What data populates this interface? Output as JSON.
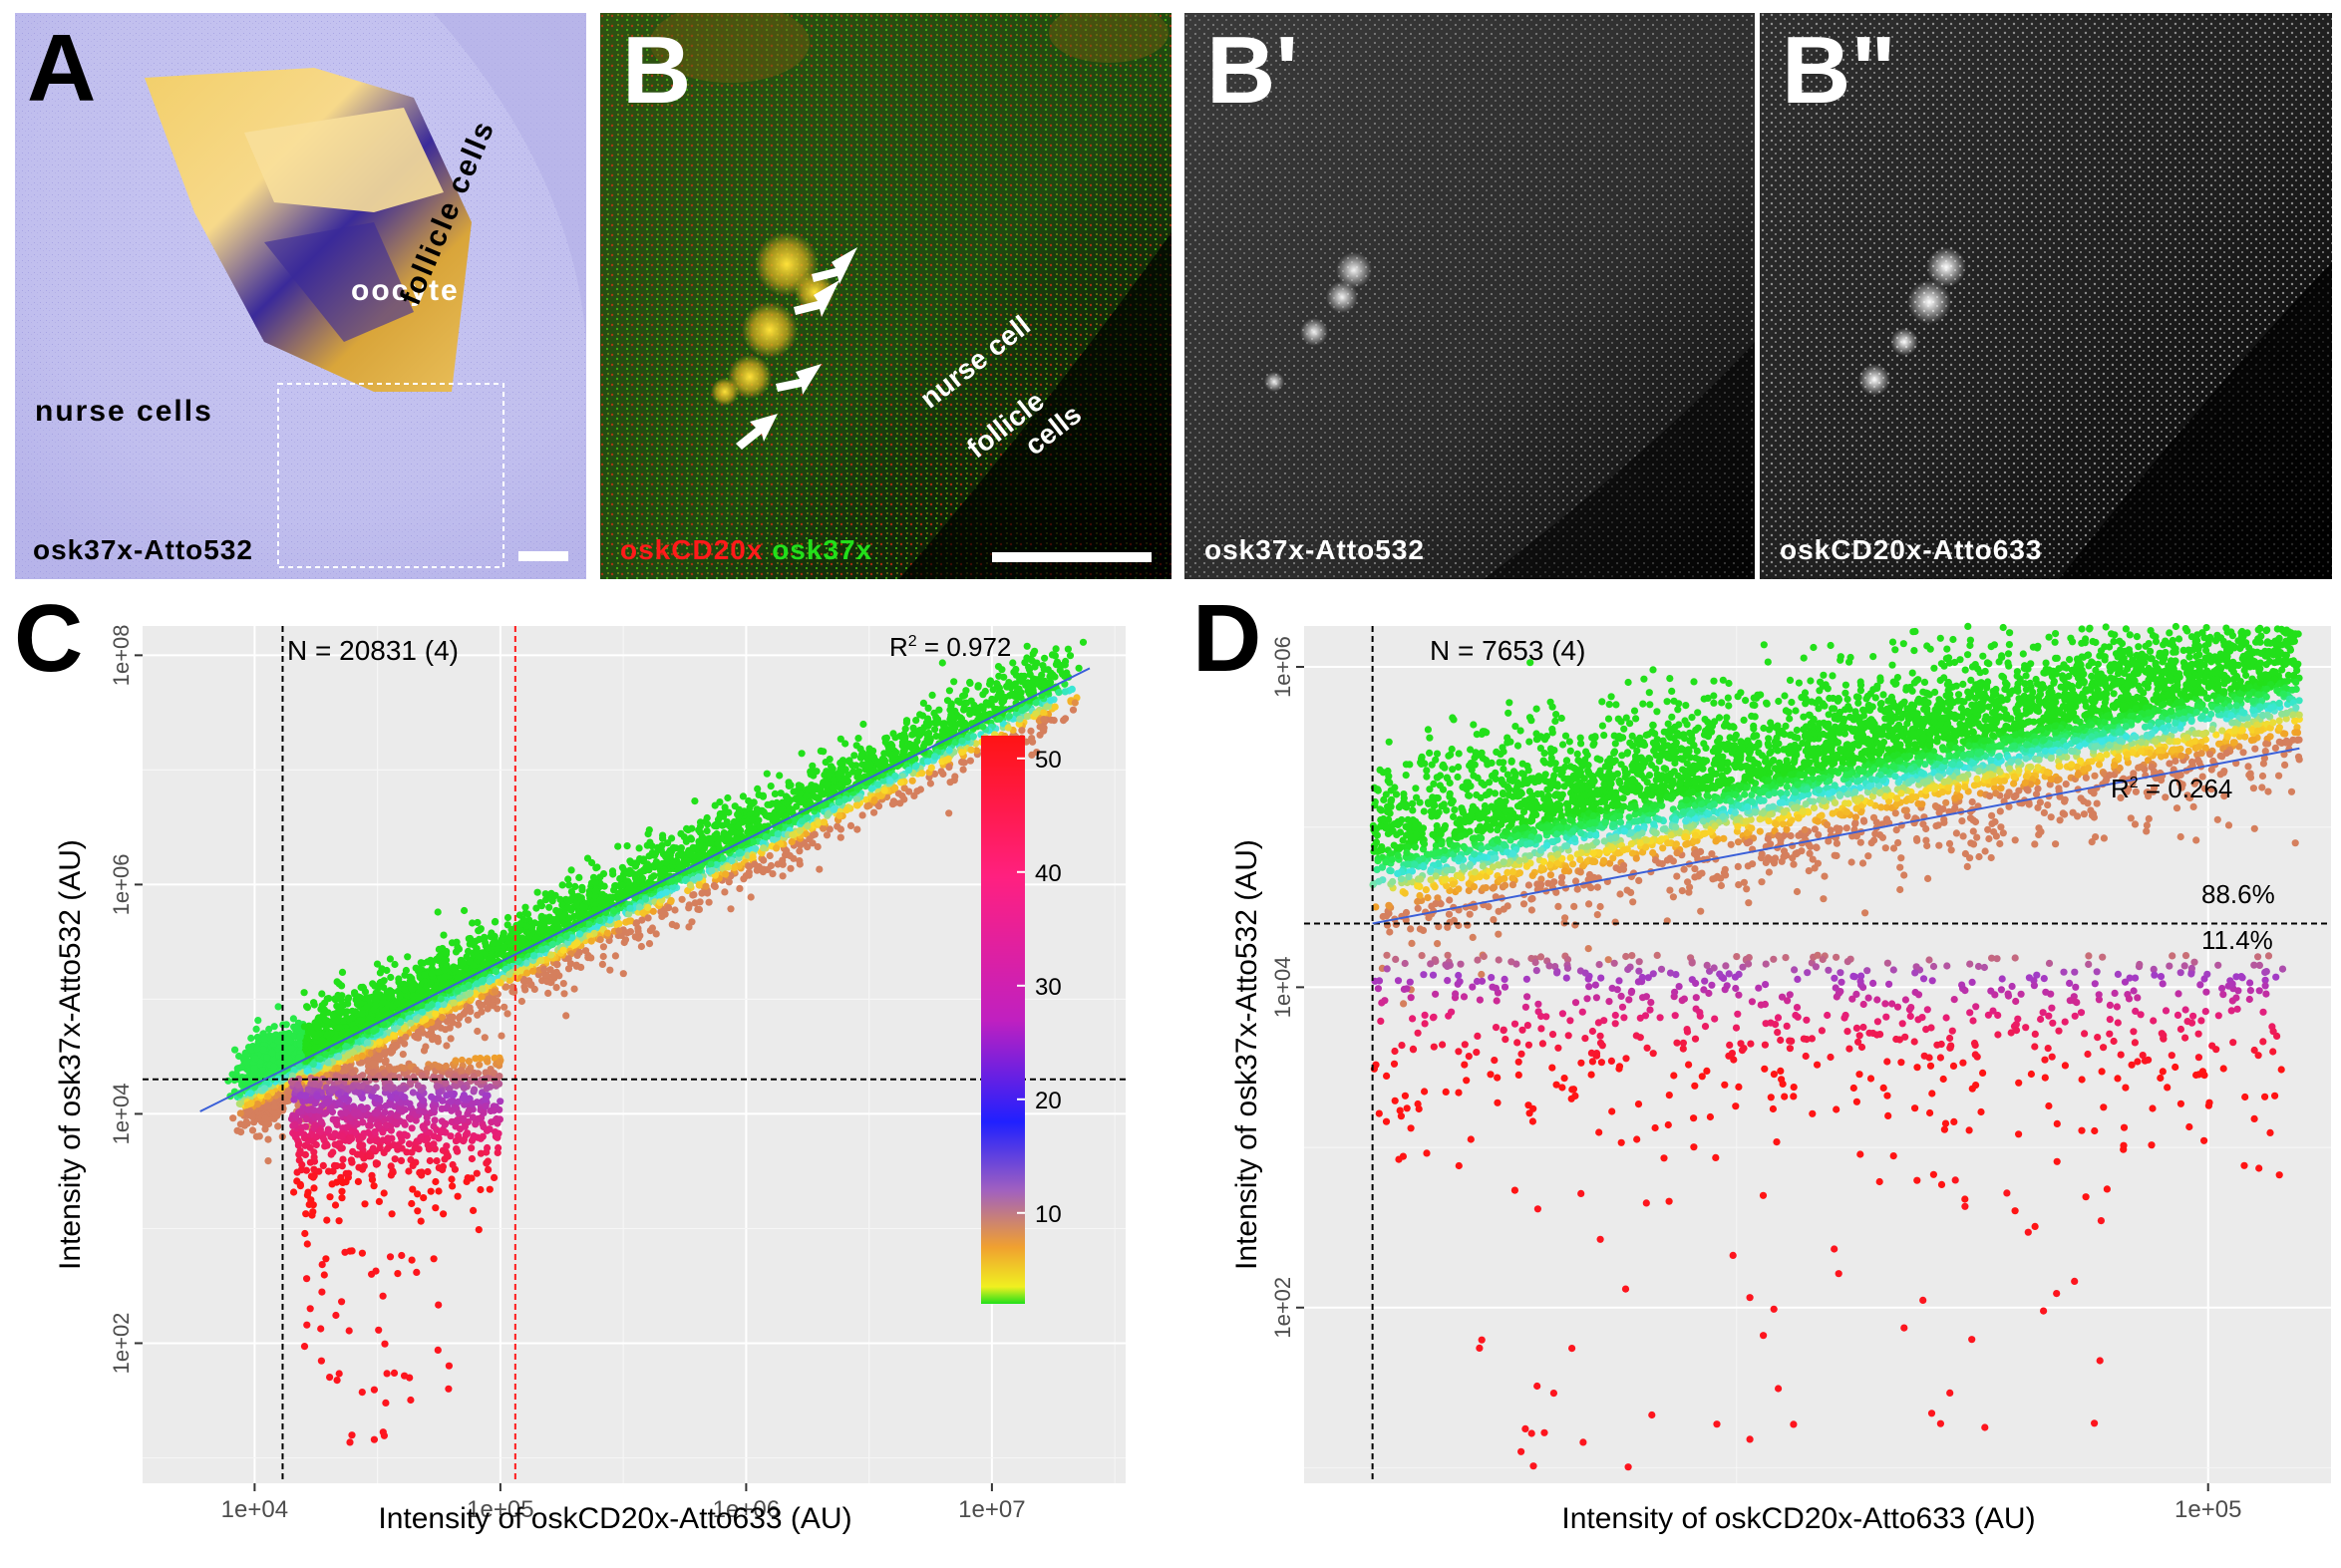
{
  "panels": {
    "A": {
      "letter": "A",
      "labels": {
        "oocyte": "oocyte",
        "follicle": "follicle cells",
        "nurse": "nurse cells"
      },
      "caption": "osk37x-Atto532"
    },
    "B": {
      "letter": "B",
      "labels": {
        "nurse": "nurse cell",
        "follicle1": "follicle",
        "follicle2": "cells"
      },
      "caption_red": "oskCD20x",
      "caption_green": "osk37x"
    },
    "B1": {
      "letter": "B'",
      "caption": "osk37x-Atto532"
    },
    "B2": {
      "letter": "B\"",
      "caption": "oskCD20x-Atto633"
    }
  },
  "colors": {
    "red": "#ff1a1a",
    "green": "#22e01a",
    "cyan": "#2ef0f0",
    "blue_fit": "#3a5fd8",
    "panel_bg": "#ebebeb"
  },
  "chart_data": [
    {
      "type": "scatter",
      "panel": "C",
      "n_label": "N = 20831 (4)",
      "r2_prefix": "R",
      "r2_sup": "2",
      "r2_value": " = 0.972",
      "xlabel": "Intensity of oskCD20x-Atto633 (AU)",
      "ylabel": "Intensity of osk37x-Atto532 (AU)",
      "x_scale": "log",
      "y_scale": "log",
      "xlim": [
        3500,
        35000000
      ],
      "ylim": [
        6,
        180000000
      ],
      "x_ticks": [
        10000,
        100000,
        1000000,
        10000000
      ],
      "x_tick_labels": [
        "1e+04",
        "1e+05",
        "1e+06",
        "1e+07"
      ],
      "y_ticks": [
        100,
        10000,
        1000000,
        100000000
      ],
      "y_tick_labels": [
        "1e+02",
        "1e+04",
        "1e+06",
        "1e+08"
      ],
      "threshold_x": 13000,
      "threshold_x_red": 115000,
      "threshold_y": 20000,
      "fit": {
        "x": [
          6000,
          25000000
        ],
        "y": [
          10500,
          77000000
        ]
      },
      "colorbar": {
        "ticks": [
          10,
          20,
          30,
          40,
          50
        ],
        "tick_labels": [
          "10",
          "20",
          "30",
          "40",
          "50"
        ],
        "range": [
          2,
          52
        ]
      },
      "grid": true,
      "legend": "inside bottom-right"
    },
    {
      "type": "scatter",
      "panel": "D",
      "n_label": "N = 7653 (4)",
      "r2_prefix": "R",
      "r2_sup": "2",
      "r2_value": " = 0.264",
      "pct_above": "88.6%",
      "pct_below": "11.4%",
      "xlabel": "Intensity of oskCD20x-Atto633 (AU)",
      "ylabel": "Intensity of osk37x-Atto532 (AU)",
      "x_scale": "log",
      "y_scale": "log",
      "xlim": [
        11000,
        135000
      ],
      "ylim": [
        8,
        1800000
      ],
      "x_ticks": [
        100000
      ],
      "x_tick_labels": [
        "1e+05"
      ],
      "y_ticks": [
        100,
        10000,
        1000000
      ],
      "y_tick_labels": [
        "1e+02",
        "1e+04",
        "1e+06"
      ],
      "threshold_x": 13000,
      "threshold_y": 25000,
      "fit": {
        "x": [
          13000,
          125000
        ],
        "y": [
          25000,
          310000
        ]
      },
      "grid": true
    }
  ]
}
